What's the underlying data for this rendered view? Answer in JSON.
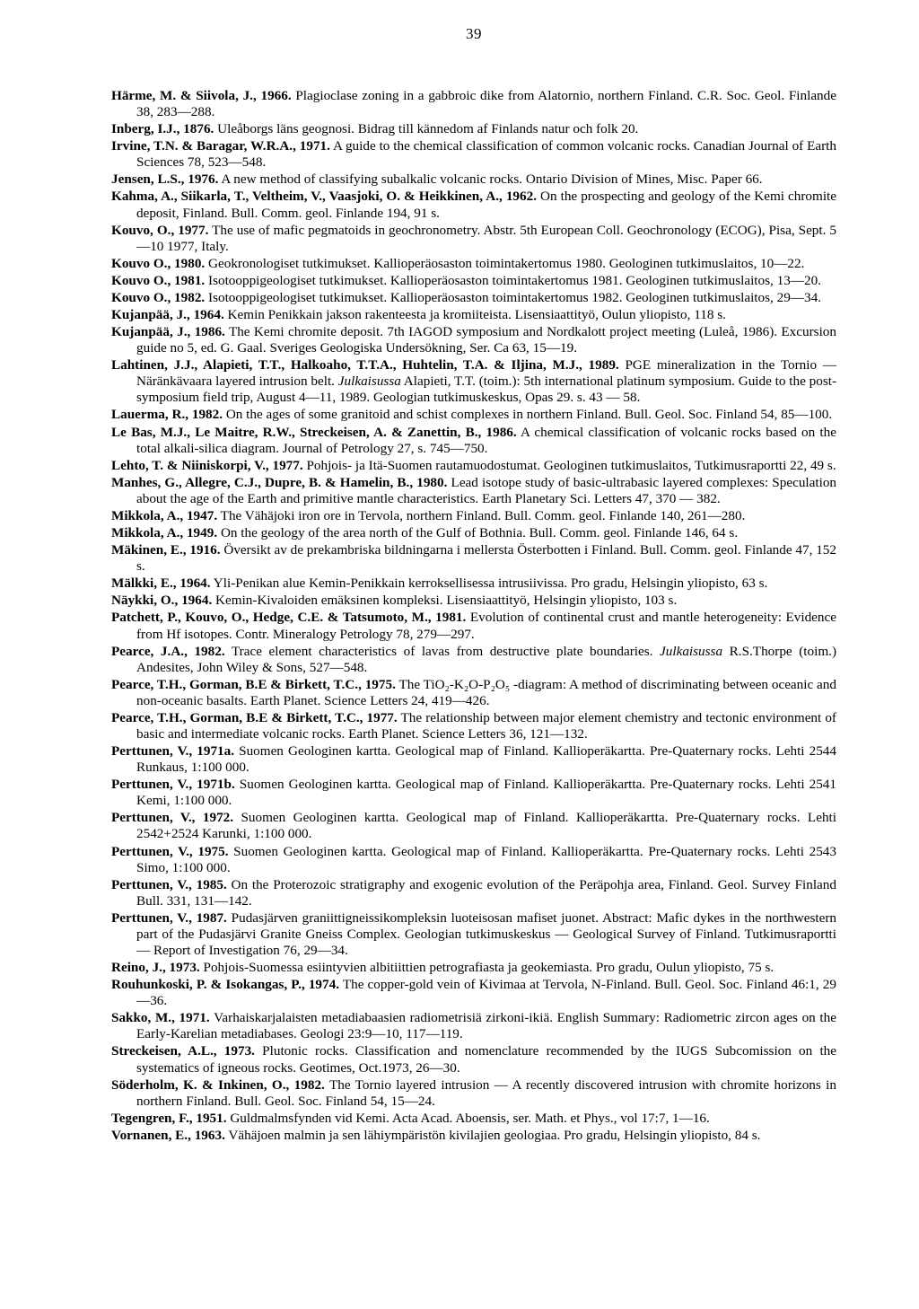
{
  "page_number": "39",
  "references": [
    "<b>Härme, M. & Siivola, J., 1966.</b> Plagioclase zoning in a gabbroic dike from Alatornio, northern Finland. C.R. Soc. Geol. Finlande 38, 283—288.",
    "<b>Inberg, I.J., 1876.</b> Uleåborgs läns geognosi. Bidrag till kännedom af Finlands natur och folk 20.",
    "<b>Irvine, T.N. & Baragar, W.R.A., 1971.</b> A guide to the chemical classification of common volcanic rocks. Canadian Journal of Earth Sciences 78, 523—548.",
    "<b>Jensen, L.S., 1976.</b> A new method of classifying subalkalic volcanic rocks. Ontario Division of Mines, Misc. Paper 66.",
    "<b>Kahma, A., Siikarla, T., Veltheim, V., Vaasjoki, O. & Heikkinen, A., 1962.</b> On the prospecting and geology of the Kemi chromite deposit, Finland. Bull. Comm. geol. Finlande 194, 91 s.",
    "<b>Kouvo, O., 1977.</b> The use of mafic pegmatoids in geochronometry. Abstr. 5th European Coll. Geochronology (ECOG), Pisa, Sept. 5—10 1977, Italy.",
    "<b>Kouvo O., 1980.</b> Geokronologiset tutkimukset. Kallioperäosaston toimintakertomus 1980. Geologinen tutkimuslaitos, 10—22.",
    "<b>Kouvo O., 1981.</b> Isotooppigeologiset tutkimukset. Kallioperäosaston toimintakertomus 1981. Geologinen tutkimuslaitos, 13—20.",
    "<b>Kouvo O., 1982.</b> Isotooppigeologiset tutkimukset. Kallioperäosaston toimintakertomus 1982. Geologinen tutkimuslaitos, 29—34.",
    "<b>Kujanpää, J., 1964.</b> Kemin Penikkain jakson rakenteesta ja kromiiteista. Lisensiaattityö, Oulun yliopisto, 118 s.",
    "<b>Kujanpää, J., 1986.</b> The Kemi chromite deposit. 7th IAGOD symposium and Nordkalott project meeting (Luleå, 1986). Excursion guide no 5, ed. G. Gaal. Sveriges Geologiska Undersökning, Ser. Ca 63, 15—19.",
    "<b>Lahtinen, J.J., Alapieti, T.T., Halkoaho, T.T.A., Huhtelin, T.A. & Iljina, M.J., 1989.</b> PGE mineralization in the Tornio — Näränkävaara layered intrusion belt. <i>Julkaisussa</i> Alapieti, T.T. (toim.): 5th international platinum symposium. Guide to the post-symposium field trip, August 4—11, 1989. Geologian tutkimuskeskus, Opas 29. s. 43 — 58.",
    "<b>Lauerma, R., 1982.</b> On the ages of some granitoid and schist complexes in northern Finland. Bull. Geol. Soc. Finland 54, 85—100.",
    "<b>Le Bas, M.J., Le Maitre, R.W., Streckeisen, A. & Zanettin, B., 1986.</b> A chemical classification of volcanic rocks based on the total alkali-silica diagram. Journal of Petrology 27, s. 745—750.",
    "<b>Lehto, T. & Niiniskorpi, V., 1977.</b> Pohjois- ja Itä-Suomen rautamuodostumat. Geologinen tutkimuslaitos, Tutkimusraportti 22, 49 s.",
    "<b>Manhes, G., Allegre, C.J., Dupre, B. & Hamelin, B., 1980.</b> Lead isotope study of basic-ultrabasic layered complexes: Speculation about the age of the Earth and primitive mantle characteristics. Earth Planetary Sci. Letters 47, 370 — 382.",
    "<b>Mikkola, A., 1947.</b> The Vähäjoki iron ore in Tervola, northern Finland. Bull. Comm. geol. Finlande 140, 261—280.",
    "<b>Mikkola, A., 1949.</b> On the geology of the area north of the Gulf of Bothnia. Bull. Comm. geol. Finlande 146, 64 s.",
    "<b>Mäkinen, E., 1916.</b> Översikt av de prekambriska bildningarna i mellersta Österbotten i Finland. Bull. Comm. geol. Finlande 47, 152 s.",
    "<b>Mälkki, E., 1964.</b> Yli-Penikan alue Kemin-Penikkain kerroksellisessa intrusiivissa. Pro gradu, Helsingin yliopisto, 63 s.",
    "<b>Näykki, O., 1964.</b> Kemin-Kivaloiden emäksinen kompleksi. Lisensiaattityö, Helsingin yliopisto, 103 s.",
    "<b>Patchett, P., Kouvo, O., Hedge, C.E. & Tatsumoto, M., 1981.</b> Evolution of continental crust and mantle heterogeneity: Evidence from Hf isotopes. Contr. Mineralogy Petrology 78, 279—297.",
    "<b>Pearce, J.A., 1982.</b> Trace element characteristics of lavas from destructive plate boundaries. <i>Julkaisussa</i> R.S.Thorpe (toim.) Andesites, John Wiley & Sons, 527—548.",
    "<b>Pearce, T.H., Gorman, B.E & Birkett, T.C., 1975.</b> The TiO₂-K₂O-P₂O₅ -diagram: A method of discriminating between oceanic and non-oceanic basalts. Earth Planet. Science Letters 24, 419—426.",
    "<b>Pearce, T.H., Gorman, B.E & Birkett, T.C., 1977.</b> The relationship between major element chemistry and tectonic environment of basic and intermediate volcanic rocks. Earth Planet. Science Letters 36, 121—132.",
    "<b>Perttunen, V., 1971a.</b> Suomen Geologinen kartta. Geological map of Finland. Kallioperäkartta. Pre-Quaternary rocks. Lehti 2544 Runkaus, 1:100 000.",
    "<b>Perttunen, V., 1971b.</b> Suomen Geologinen kartta. Geological map of Finland. Kallioperäkartta. Pre-Quaternary rocks. Lehti 2541 Kemi, 1:100 000.",
    "<b>Perttunen, V., 1972.</b> Suomen Geologinen kartta. Geological map of Finland. Kallioperäkartta. Pre-Quaternary rocks. Lehti 2542+2524 Karunki, 1:100 000.",
    "<b>Perttunen, V., 1975.</b> Suomen Geologinen kartta. Geological map of Finland. Kallioperäkartta. Pre-Quaternary rocks. Lehti 2543 Simo, 1:100 000.",
    "<b>Perttunen, V., 1985.</b> On the Proterozoic stratigraphy and exogenic evolution of the Peräpohja area, Finland. Geol. Survey Finland Bull. 331, 131—142.",
    "<b>Perttunen, V., 1987.</b> Pudasjärven graniittigneissikompleksin luoteisosan mafiset juonet. Abstract: Mafic dykes in the northwestern part of the Pudasjärvi Granite Gneiss Complex. Geologian tutkimuskeskus — Geological Survey of Finland. Tutkimusraportti — Report of Investigation 76, 29—34.",
    "<b>Reino, J., 1973.</b> Pohjois-Suomessa esiintyvien albitiittien petrografiasta ja geokemiasta. Pro gradu, Oulun yliopisto, 75 s.",
    "<b>Rouhunkoski, P. & Isokangas, P., 1974.</b> The copper-gold vein of Kivimaa at Tervola, N-Finland. Bull. Geol. Soc. Finland 46:1, 29—36.",
    "<b>Sakko, M., 1971.</b> Varhaiskarjalaisten metadiabaasien radiometrisiä zirkoni-ikiä. English Summary: Radiometric zircon ages on the Early-Karelian metadiabases. Geologi 23:9—10, 117—119.",
    "<b>Streckeisen, A.L., 1973.</b> Plutonic rocks. Classification and nomenclature recommended by the IUGS Subcomission on the systematics of igneous rocks. Geotimes, Oct.1973, 26—30.",
    "<b>Söderholm, K. & Inkinen, O., 1982.</b> The Tornio layered intrusion — A recently discovered intrusion with chromite horizons in northern Finland. Bull. Geol. Soc. Finland 54, 15—24.",
    "<b>Tegengren, F., 1951.</b> Guldmalmsfynden vid Kemi. Acta Acad. Aboensis, ser. Math. et Phys., vol 17:7, 1—16.",
    "<b>Vornanen, E., 1963.</b> Vähäjoen malmin ja sen lähiympäristön kivilajien geologiaa. Pro gradu, Helsingin yliopisto, 84 s."
  ]
}
